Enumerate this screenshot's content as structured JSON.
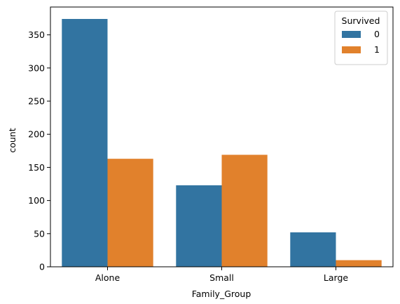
{
  "chart_data": {
    "type": "bar",
    "title": "",
    "xlabel": "Family_Group",
    "ylabel": "count",
    "categories": [
      "Alone",
      "Small",
      "Large"
    ],
    "series": [
      {
        "name": "0",
        "color": "#3274a1",
        "values": [
          374,
          123,
          52
        ]
      },
      {
        "name": "1",
        "color": "#e1812c",
        "values": [
          163,
          169,
          10
        ]
      }
    ],
    "ylim": [
      0,
      392
    ],
    "yticks": [
      0,
      50,
      100,
      150,
      200,
      250,
      300,
      350
    ],
    "grid": false,
    "legend": {
      "title": "Survived",
      "placement": "top-right"
    }
  }
}
